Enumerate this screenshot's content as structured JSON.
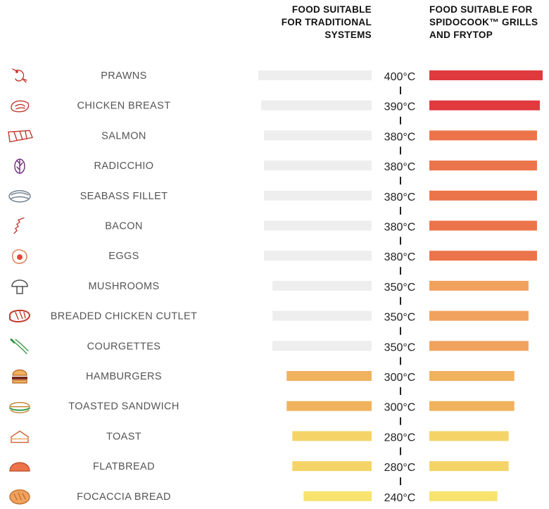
{
  "chart_data": {
    "type": "bar",
    "orientation": "horizontal",
    "layout": "back-to-back",
    "unit": "°C",
    "left_header_lines": [
      "FOOD SUITABLE",
      "FOR TRADITIONAL",
      "SYSTEMS"
    ],
    "right_header_lines": [
      "FOOD SUITABLE FOR",
      "SPIDOCOOK™ GRILLS",
      "AND FRYTOP"
    ],
    "series": [
      {
        "name": "FOOD SUITABLE FOR TRADITIONAL SYSTEMS",
        "direction": "left"
      },
      {
        "name": "FOOD SUITABLE FOR SPIDOCOOK™ GRILLS AND FRYTOP",
        "direction": "right"
      }
    ],
    "categories": [
      "PRAWNS",
      "CHICKEN BREAST",
      "SALMON",
      "RADICCHIO",
      "SEABASS FILLET",
      "BACON",
      "EGGS",
      "MUSHROOMS",
      "BREADED CHICKEN CUTLET",
      "COURGETTES",
      "HAMBURGERS",
      "TOASTED SANDWICH",
      "TOAST",
      "FLATBREAD",
      "FOCACCIA BREAD"
    ],
    "icons": [
      "prawn-icon",
      "chicken-breast-icon",
      "salmon-icon",
      "radicchio-icon",
      "seabass-fillet-icon",
      "bacon-icon",
      "egg-icon",
      "mushroom-icon",
      "breaded-cutlet-icon",
      "courgette-icon",
      "hamburger-icon",
      "toasted-sandwich-icon",
      "toast-icon",
      "flatbread-icon",
      "focaccia-icon"
    ],
    "temperatures": [
      400,
      390,
      380,
      380,
      380,
      380,
      380,
      350,
      350,
      350,
      300,
      300,
      280,
      280,
      240
    ],
    "temperature_labels": [
      "400°C",
      "390°C",
      "380°C",
      "380°C",
      "380°C",
      "380°C",
      "380°C",
      "350°C",
      "350°C",
      "350°C",
      "300°C",
      "300°C",
      "280°C",
      "280°C",
      "240°C"
    ],
    "traditional_suitable": [
      false,
      false,
      false,
      false,
      false,
      false,
      false,
      false,
      false,
      false,
      true,
      true,
      true,
      true,
      true
    ],
    "scale_range_celsius": [
      0,
      400
    ],
    "colors": {
      "400": "#e03a3e",
      "390": "#e03a3e",
      "380": "#ec744a",
      "350": "#f1a25e",
      "300": "#f1b25e",
      "280": "#f5d467",
      "240": "#f7e36d",
      "unsuitable": "#eeeeee",
      "icon": "#c23a2e",
      "label": "#555555",
      "temp": "#222222"
    }
  }
}
